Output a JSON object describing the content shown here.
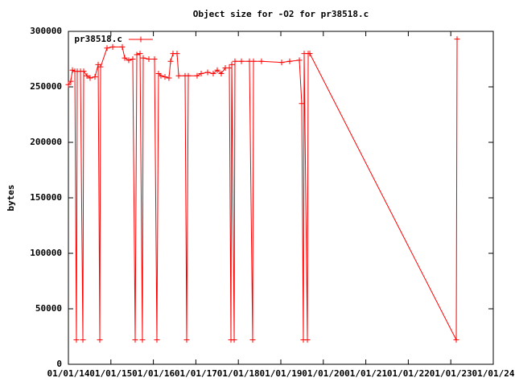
{
  "chart_data": {
    "type": "line",
    "title": "Object size for -O2 for pr38518.c",
    "ylabel": "bytes",
    "x": [
      14.0,
      14.057,
      14.095,
      14.152,
      14.189,
      14.208,
      14.284,
      14.341,
      14.36,
      14.436,
      14.511,
      14.625,
      14.701,
      14.739,
      14.758,
      14.909,
      15.042,
      15.269,
      15.326,
      15.42,
      15.515,
      15.572,
      15.61,
      15.686,
      15.742,
      15.761,
      15.894,
      16.027,
      16.083,
      16.121,
      16.178,
      16.273,
      16.367,
      16.405,
      16.462,
      16.557,
      16.595,
      16.746,
      16.784,
      16.822,
      17.03,
      17.125,
      17.277,
      17.409,
      17.504,
      17.598,
      17.693,
      17.788,
      17.826,
      17.845,
      17.902,
      17.92,
      18.072,
      18.261,
      18.337,
      18.356,
      18.545,
      19.019,
      19.208,
      19.436,
      19.492,
      19.53,
      19.549,
      19.625,
      19.644,
      19.682,
      23.129,
      23.148
    ],
    "series": [
      {
        "name": "pr38518.c",
        "color": "#ff0000",
        "values": [
          252000,
          255000,
          265000,
          264000,
          22000,
          264000,
          264000,
          22000,
          264000,
          260000,
          258000,
          259000,
          270000,
          22000,
          268000,
          285000,
          286000,
          286000,
          276000,
          274000,
          275000,
          22000,
          279000,
          280000,
          22000,
          276000,
          275000,
          275000,
          22000,
          262000,
          260000,
          259000,
          258000,
          273000,
          280000,
          280000,
          260000,
          260000,
          22000,
          260000,
          260000,
          262000,
          263000,
          262000,
          265000,
          262000,
          267000,
          267000,
          22000,
          270000,
          22000,
          273000,
          273000,
          273000,
          22000,
          273000,
          273000,
          272000,
          273000,
          274000,
          235000,
          22000,
          280000,
          22000,
          280000,
          280000,
          22000,
          293000
        ]
      }
    ],
    "xlim": [
      14,
      24
    ],
    "xticks": [
      {
        "value": 14,
        "label": "01/01/14"
      },
      {
        "value": 15,
        "label": "01/01/15"
      },
      {
        "value": 16,
        "label": "01/01/16"
      },
      {
        "value": 17,
        "label": "01/01/17"
      },
      {
        "value": 18,
        "label": "01/01/18"
      },
      {
        "value": 19,
        "label": "01/01/19"
      },
      {
        "value": 20,
        "label": "01/01/20"
      },
      {
        "value": 21,
        "label": "01/01/21"
      },
      {
        "value": 22,
        "label": "01/01/22"
      },
      {
        "value": 23,
        "label": "01/01/23"
      },
      {
        "value": 24,
        "label": "01/01/24"
      }
    ],
    "ylim": [
      0,
      300000
    ],
    "yticks": [
      0,
      50000,
      100000,
      150000,
      200000,
      250000,
      300000
    ],
    "legend": "top-left"
  }
}
